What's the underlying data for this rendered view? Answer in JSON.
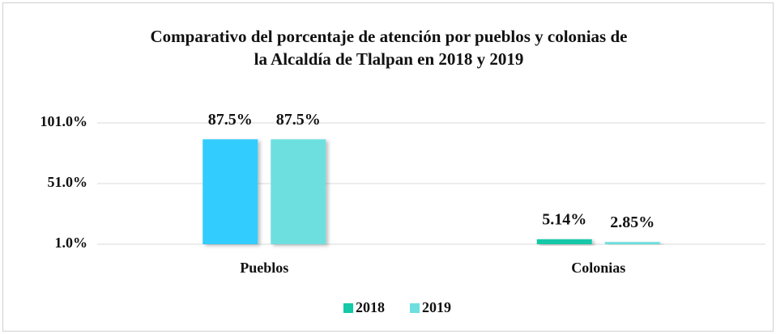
{
  "chart_data": {
    "type": "bar",
    "title": [
      "Comparativo del porcentaje de atención por pueblos y colonias de",
      "la Alcaldía de Tlalpan en 2018 y 2019"
    ],
    "categories": [
      "Pueblos",
      "Colonias"
    ],
    "series": [
      {
        "name": "2018",
        "color": "#14c8a8",
        "colors": [
          "#33ccff",
          "#14c8a8"
        ],
        "values": [
          87.5,
          5.14
        ],
        "value_labels": [
          "87.5%",
          "5.14%"
        ]
      },
      {
        "name": "2019",
        "color": "#6edfdf",
        "colors": [
          "#6edfdf",
          "#6edfdf"
        ],
        "values": [
          87.5,
          2.85
        ],
        "value_labels": [
          "87.5%",
          "2.85%"
        ]
      }
    ],
    "ylim": [
      1,
      101
    ],
    "yticks": [
      {
        "value": 1,
        "label": "1.0%"
      },
      {
        "value": 51,
        "label": "51.0%"
      },
      {
        "value": 101,
        "label": "101.0%"
      }
    ],
    "grid": true,
    "legend": "bottom"
  }
}
